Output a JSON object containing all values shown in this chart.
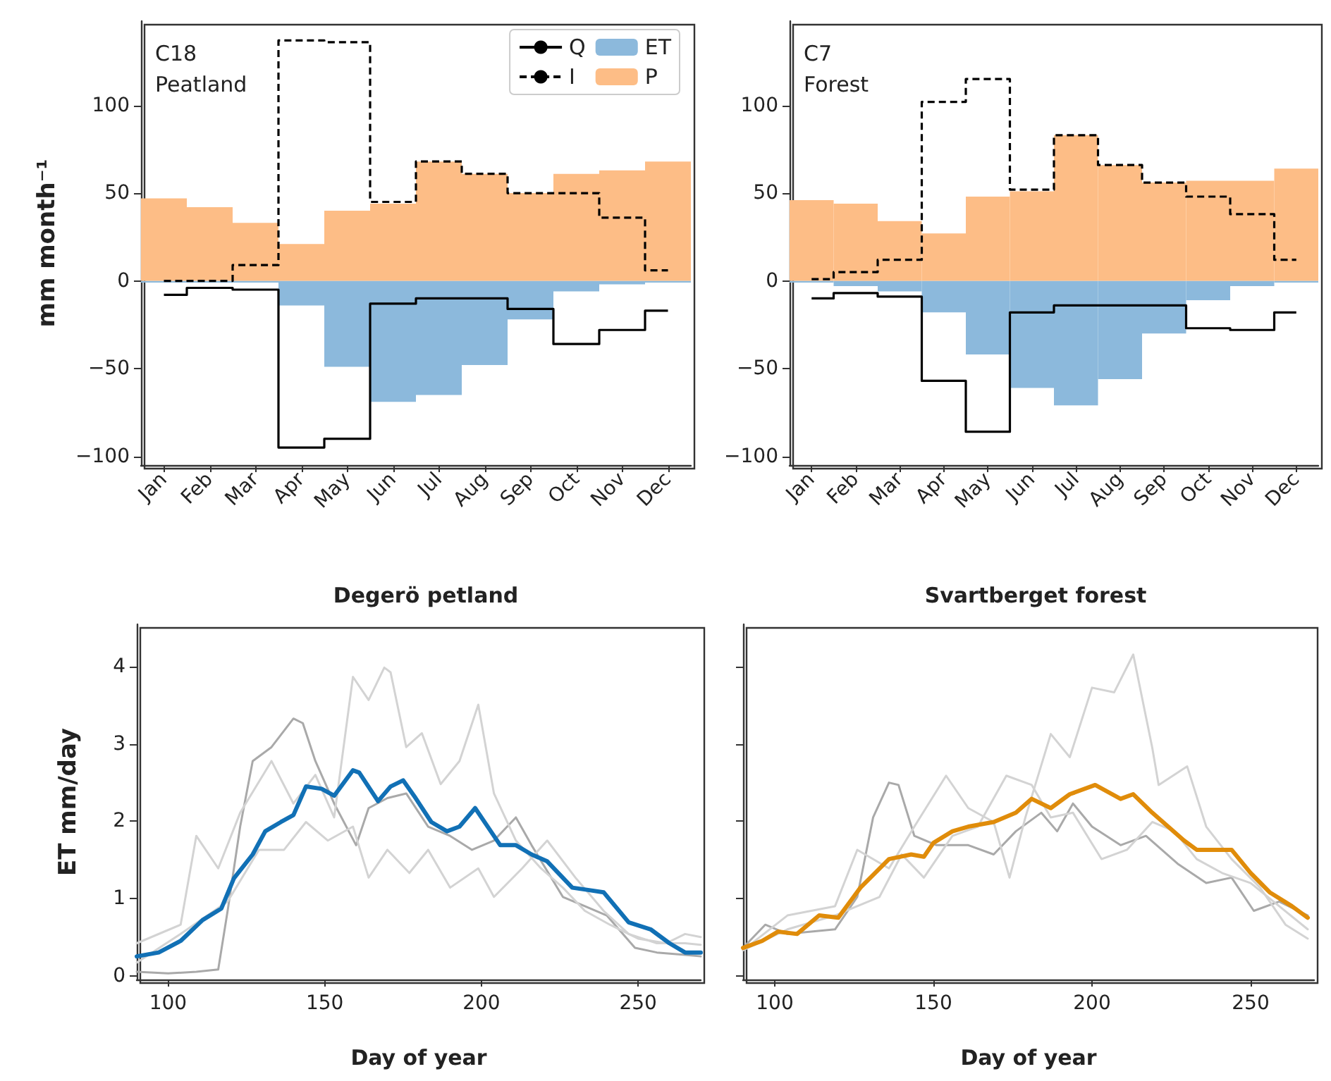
{
  "chart_data": [
    {
      "type": "bar",
      "stacked": true,
      "ylabel": "mm month⁻¹",
      "annotations": [
        "C18\nPeatland"
      ],
      "legend": "top right",
      "grid": false,
      "marker": "none",
      "categories": [
        "Jan",
        "Feb",
        "Mar",
        "Apr",
        "May",
        "Jun",
        "Jul",
        "Aug",
        "Sep",
        "Oct",
        "Nov",
        "Dec"
      ],
      "ylim": [
        -105,
        148
      ],
      "yticks": [
        -100,
        -50,
        0,
        50,
        100
      ],
      "series": [
        {
          "name": "Q",
          "type": "step",
          "line_style": "solid",
          "color": "#000000",
          "values": [
            -8,
            -4,
            -5,
            -95,
            -90,
            -13,
            -10,
            -10,
            -16,
            -36,
            -28,
            -17
          ]
        },
        {
          "name": "I",
          "type": "step",
          "line_style": "dashed",
          "color": "#000000",
          "values": [
            0,
            0,
            9,
            137,
            136,
            45,
            68,
            61,
            50,
            50,
            36,
            6
          ]
        },
        {
          "name": "ET",
          "color": "#8cb9dc",
          "values": [
            -1,
            -1,
            -1,
            -14,
            -49,
            -69,
            -65,
            -48,
            -22,
            -6,
            -2,
            -1
          ]
        },
        {
          "name": "P",
          "color": "#fdbd86",
          "values": [
            47,
            42,
            33,
            21,
            40,
            44,
            68,
            61,
            50,
            61,
            63,
            68
          ]
        }
      ]
    },
    {
      "type": "bar",
      "stacked": true,
      "annotations": [
        "C7\nForest"
      ],
      "grid": false,
      "marker": "none",
      "categories": [
        "Jan",
        "Feb",
        "Mar",
        "Apr",
        "May",
        "Jun",
        "Jul",
        "Aug",
        "Sep",
        "Oct",
        "Nov",
        "Dec"
      ],
      "ylim": [
        -105,
        148
      ],
      "yticks": [
        -100,
        -50,
        0,
        50,
        100
      ],
      "series": [
        {
          "type": "step",
          "line_style": "solid",
          "color": "#000000",
          "values": [
            -10,
            -7,
            -9,
            -57,
            -86,
            -18,
            -14,
            -14,
            -14,
            -27,
            -28,
            -18
          ]
        },
        {
          "type": "step",
          "line_style": "dashed",
          "color": "#000000",
          "values": [
            1,
            5,
            12,
            102,
            115,
            52,
            83,
            66,
            56,
            48,
            38,
            12
          ]
        },
        {
          "color": "#8cb9dc",
          "values": [
            -1,
            -3,
            -6,
            -18,
            -42,
            -61,
            -71,
            -56,
            -30,
            -11,
            -3,
            -1
          ]
        },
        {
          "color": "#fdbd86",
          "values": [
            46,
            44,
            34,
            27,
            48,
            51,
            83,
            66,
            56,
            57,
            57,
            64
          ]
        }
      ]
    },
    {
      "type": "line",
      "title": "Degerö petland",
      "xlabel": "Day of year",
      "ylabel": "ET mm/day",
      "grid": false,
      "marker": "none",
      "line_style": "solid",
      "xlim": [
        90,
        270
      ],
      "xticks": [
        100,
        150,
        200,
        250
      ],
      "ylim": [
        -0.05,
        4.55
      ],
      "yticks": [
        0,
        1,
        2,
        3,
        4
      ],
      "series": [
        {
          "color": "#a9a9a9",
          "x": [
            90,
            100,
            109,
            116,
            119,
            123,
            127,
            133,
            140,
            143,
            147,
            153,
            160,
            164,
            170,
            176,
            183,
            190,
            197,
            204,
            211,
            216,
            226,
            233,
            240,
            249,
            256,
            265,
            270
          ],
          "values": [
            0.05,
            0.03,
            0.05,
            0.08,
            0.84,
            1.93,
            2.78,
            2.96,
            3.33,
            3.27,
            2.78,
            2.23,
            1.69,
            2.17,
            2.3,
            2.36,
            1.93,
            1.81,
            1.63,
            1.75,
            2.05,
            1.69,
            1.02,
            0.9,
            0.78,
            0.36,
            0.3,
            0.27,
            0.25
          ]
        },
        {
          "color": "#d3d3d3",
          "x": [
            90,
            104,
            109,
            116,
            123,
            133,
            140,
            147,
            153,
            159,
            164,
            169,
            171,
            176,
            181,
            187,
            193,
            199,
            204,
            211,
            219,
            226,
            233,
            241,
            250,
            259,
            265,
            270
          ],
          "values": [
            0.42,
            0.66,
            1.81,
            1.39,
            2.11,
            2.78,
            2.23,
            2.6,
            2.05,
            3.87,
            3.57,
            3.99,
            3.93,
            2.96,
            3.14,
            2.48,
            2.78,
            3.51,
            2.36,
            1.75,
            1.39,
            1.14,
            0.84,
            0.66,
            0.48,
            0.42,
            0.54,
            0.5
          ]
        },
        {
          "color": "#d3d3d3",
          "x": [
            90,
            104,
            119,
            129,
            137,
            144,
            151,
            159,
            164,
            170,
            177,
            183,
            190,
            199,
            204,
            213,
            221,
            230,
            239,
            247,
            256,
            265,
            270
          ],
          "values": [
            0.17,
            0.54,
            0.96,
            1.63,
            1.63,
            1.99,
            1.75,
            1.93,
            1.27,
            1.63,
            1.33,
            1.63,
            1.14,
            1.39,
            1.02,
            1.39,
            1.75,
            1.27,
            0.84,
            0.54,
            0.42,
            0.42,
            0.4
          ]
        },
        {
          "color": "#1170b5",
          "x": [
            90,
            97,
            104,
            111,
            117,
            121,
            127,
            131,
            136,
            140,
            144,
            149,
            153,
            159,
            161,
            167,
            171,
            175,
            179,
            184,
            189,
            193,
            198,
            203,
            206,
            211,
            216,
            221,
            229,
            234,
            239,
            247,
            254,
            260,
            265,
            270
          ],
          "values": [
            0.25,
            0.3,
            0.45,
            0.72,
            0.87,
            1.26,
            1.57,
            1.87,
            1.99,
            2.08,
            2.45,
            2.42,
            2.33,
            2.66,
            2.63,
            2.26,
            2.45,
            2.53,
            2.3,
            1.99,
            1.87,
            1.93,
            2.17,
            1.87,
            1.69,
            1.69,
            1.57,
            1.48,
            1.14,
            1.11,
            1.08,
            0.69,
            0.6,
            0.42,
            0.3,
            0.3
          ]
        }
      ]
    },
    {
      "type": "line",
      "title": "Svartberget forest",
      "xlabel": "Day of year",
      "grid": false,
      "marker": "none",
      "line_style": "solid",
      "tick_labels": "x",
      "xlim": [
        90,
        270
      ],
      "xticks": [
        100,
        150,
        200,
        250
      ],
      "ylim": [
        -0.05,
        4.55
      ],
      "yticks": [
        0,
        1,
        2,
        3,
        4
      ],
      "series": [
        {
          "color": "#a9a9a9",
          "x": [
            90,
            97,
            104,
            119,
            126,
            131,
            136,
            139,
            144,
            151,
            161,
            169,
            176,
            184,
            189,
            194,
            200,
            209,
            217,
            227,
            236,
            244,
            251,
            259,
            268
          ],
          "values": [
            0.36,
            0.66,
            0.54,
            0.6,
            1.02,
            2.05,
            2.5,
            2.47,
            1.81,
            1.69,
            1.69,
            1.57,
            1.87,
            2.11,
            1.87,
            2.23,
            1.93,
            1.69,
            1.81,
            1.45,
            1.2,
            1.27,
            0.84,
            0.96,
            0.78
          ]
        },
        {
          "color": "#d3d3d3",
          "x": [
            90,
            104,
            119,
            126,
            136,
            144,
            154,
            161,
            169,
            174,
            179,
            187,
            193,
            200,
            207,
            213,
            219,
            221,
            230,
            236,
            244,
            253,
            261,
            268
          ],
          "values": [
            0.33,
            0.78,
            0.9,
            1.63,
            1.39,
            1.93,
            2.59,
            2.17,
            1.99,
            1.27,
            2.05,
            3.13,
            2.83,
            3.73,
            3.67,
            4.16,
            2.95,
            2.47,
            2.71,
            1.93,
            1.51,
            1.14,
            0.66,
            0.48
          ]
        },
        {
          "color": "#d3d3d3",
          "x": [
            90,
            104,
            119,
            126,
            133,
            140,
            147,
            156,
            164,
            173,
            181,
            187,
            194,
            203,
            211,
            219,
            226,
            233,
            241,
            250,
            259,
            268
          ],
          "values": [
            0.33,
            0.6,
            0.78,
            0.9,
            1.02,
            1.57,
            1.27,
            1.81,
            1.93,
            2.59,
            2.47,
            2.05,
            2.11,
            1.51,
            1.63,
            1.99,
            1.87,
            1.51,
            1.33,
            1.2,
            0.9,
            0.6
          ]
        },
        {
          "color": "#e08c0a",
          "x": [
            90,
            96,
            101,
            107,
            114,
            120,
            127,
            136,
            143,
            147,
            150,
            156,
            161,
            169,
            176,
            181,
            187,
            193,
            201,
            209,
            213,
            219,
            224,
            229,
            233,
            244,
            250,
            256,
            263,
            268
          ],
          "values": [
            0.36,
            0.45,
            0.57,
            0.54,
            0.78,
            0.75,
            1.14,
            1.51,
            1.57,
            1.54,
            1.72,
            1.87,
            1.93,
            1.99,
            2.11,
            2.29,
            2.17,
            2.35,
            2.47,
            2.29,
            2.35,
            2.11,
            1.93,
            1.75,
            1.63,
            1.63,
            1.33,
            1.08,
            0.9,
            0.75
          ]
        }
      ]
    }
  ]
}
